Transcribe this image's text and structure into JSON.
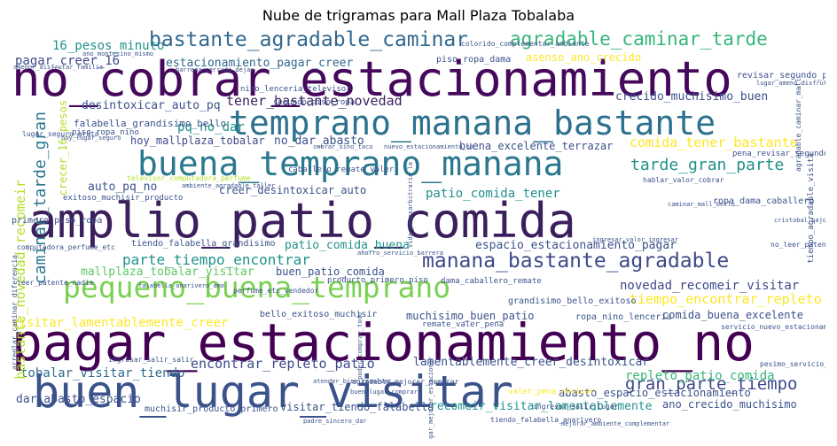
{
  "title": "Nube de trigramas para Mall Plaza Tobalaba",
  "words": {
    "w1": {
      "text": "amplio_patio_comida",
      "color": "#3b1f5c"
    },
    "w2": {
      "text": "pagar_estacionamiento_no",
      "color": "#440154"
    },
    "w3": {
      "text": "no_cobrar_estacionamiento",
      "color": "#46085c"
    },
    "w4": {
      "text": "buen_lugar_visitar",
      "color": "#3b528b"
    },
    "w5": {
      "text": "buena_temprano_manana",
      "color": "#2a788e"
    },
    "w6": {
      "text": "temprano_manana_bastante",
      "color": "#2c728e"
    },
    "w7": {
      "text": "pequeno_buena_temprano",
      "color": "#7ad151"
    },
    "w8": {
      "text": "bastante_agradable_caminar",
      "color": "#31688e"
    },
    "w9": {
      "text": "agradable_caminar_tarde",
      "color": "#35b779"
    },
    "w10": {
      "text": "manana_bastante_agradable",
      "color": "#3e4a89"
    },
    "w11": {
      "text": "caminar_tarde_gran",
      "color": "#2a788e"
    },
    "w12": {
      "text": "tener_bastante_novedad",
      "color": "#3b1f5c"
    },
    "w13": {
      "text": "parte_tiempo_encontrar",
      "color": "#21918c"
    },
    "w14": {
      "text": "tarde_gran_parte",
      "color": "#21918c"
    },
    "w15": {
      "text": "gran_parte_tiempo",
      "color": "#3e4a89"
    },
    "w16": {
      "text": "encontrar_repleto_patio",
      "color": "#3e4a89"
    },
    "w17": {
      "text": "tobalar_visitar_tiendo",
      "color": "#31688e"
    },
    "w18": {
      "text": "comida_tener_bastante",
      "color": "#fde725"
    },
    "w19": {
      "text": "patio_comida_tener",
      "color": "#21918c"
    },
    "w20": {
      "text": "tiempo_encontrar_repleto",
      "color": "#fde725"
    },
    "w21": {
      "text": "novedad_recomeir_visitar",
      "color": "#3e4a89"
    },
    "w22": {
      "text": "lamentablemente_creer_desintoxicar",
      "color": "#3b528b"
    },
    "w23": {
      "text": "repleto_patio_comida",
      "color": "#35b779"
    },
    "w24": {
      "text": "abasto_espacio_estacionamiento",
      "color": "#3b528b"
    },
    "w25": {
      "text": "visitar_lamentablemente_creer",
      "color": "#fde725"
    },
    "w26": {
      "text": "bastante_novedad_recomeir",
      "color": "#b5de2b"
    },
    "w27": {
      "text": "estacionamiento_pagar_creer",
      "color": "#31688e"
    },
    "w28": {
      "text": "pagar_creer_16",
      "color": "#3e4a89"
    },
    "w29": {
      "text": "16_pesos_minuto",
      "color": "#21918c"
    },
    "w30": {
      "text": "desintoxicar_auto_pq",
      "color": "#3b528b"
    },
    "w31": {
      "text": "pq_no_dar",
      "color": "#21918c"
    },
    "w32": {
      "text": "no_dar_abasto",
      "color": "#3b528b"
    },
    "w33": {
      "text": "buena_excelente_terrazar",
      "color": "#3b528b"
    },
    "w34": {
      "text": "crecido_muchisimo_buen",
      "color": "#3b528b"
    },
    "w35": {
      "text": "asenso_ano_crecido",
      "color": "#fde725"
    },
    "w36": {
      "text": "auto_pq_no",
      "color": "#3b528b"
    },
    "w37": {
      "text": "creer_desintoxicar_auto",
      "color": "#3b528b"
    },
    "w38": {
      "text": "hoy_mallplaza_tobalar",
      "color": "#3e4a89"
    },
    "w39": {
      "text": "falabella_grandisimo_bello",
      "color": "#3b528b"
    },
    "w40": {
      "text": "mallplaza_tobalar_visitar",
      "color": "#5ec962"
    },
    "w41": {
      "text": "buen_patio_comida",
      "color": "#3b528b"
    },
    "w42": {
      "text": "espacio_estacionamiento_pagar",
      "color": "#3b528b"
    },
    "w43": {
      "text": "patio_comida_buena",
      "color": "#21918c"
    },
    "w44": {
      "text": "muchisimo_buen_patio",
      "color": "#3b528b"
    },
    "w45": {
      "text": "comida_buena_excelente",
      "color": "#3b528b"
    },
    "w46": {
      "text": "dar_abasto_espacio",
      "color": "#3b528b"
    },
    "w47": {
      "text": "visitar_tiendo_falabella",
      "color": "#3b528b"
    },
    "w48": {
      "text": "recomeir_visitar_lamentablemente",
      "color": "#21918c"
    },
    "w49": {
      "text": "ano_crecido_muchisimo",
      "color": "#3b528b"
    },
    "w50": {
      "text": "crecer_16_pesos",
      "color": "#b5de2b"
    },
    "w51": {
      "text": "primero_piso_ropa",
      "color": "#3b528b"
    },
    "w52": {
      "text": "tiendo_falabella_grandisimo",
      "color": "#3b528b"
    },
    "w53": {
      "text": "exitoso_muchisir_producto",
      "color": "#3b528b"
    },
    "w54": {
      "text": "grandisimo_bello_exitoso",
      "color": "#3b528b"
    },
    "w55": {
      "text": "ropa_nino_lenceria",
      "color": "#3b528b"
    },
    "w56": {
      "text": "muchisir_producto_primero",
      "color": "#3b528b"
    },
    "w57": {
      "text": "bello_exitoso_muchisir",
      "color": "#3b528b"
    },
    "w58": {
      "text": "ropa_dama_caballero",
      "color": "#3b528b"
    },
    "w59": {
      "text": "nino_lenceria_televisor",
      "color": "#3b528b"
    },
    "w60": {
      "text": "piso_ropa_nino",
      "color": "#3b528b"
    },
    "w61": {
      "text": "remate_valer_pena",
      "color": "#3b528b"
    },
    "w62": {
      "text": "revisar_segundo_piso",
      "color": "#3b528b"
    },
    "w63": {
      "text": "dama_caballero_remate",
      "color": "#3b528b"
    },
    "w64": {
      "text": "producto_primero_piso",
      "color": "#3b528b"
    },
    "w65": {
      "text": "piso_ropa_dama",
      "color": "#3b528b"
    },
    "w66": {
      "text": "caballero_remate_valer",
      "color": "#3b528b"
    },
    "w67": {
      "text": "perfume_etc_vendedor",
      "color": "#3b528b"
    },
    "w68": {
      "text": "pena_revisar_segundo",
      "color": "#3b528b"
    },
    "w69": {
      "text": "segundo_piso_ropa",
      "color": "#3b528b"
    },
    "w70": {
      "text": "valer_pena_revisar",
      "color": "#fde725"
    },
    "w71": {
      "text": "lugar_seguro_grato",
      "color": "#3b528b"
    },
    "w72": {
      "text": "televisor_computadora_perfume",
      "color": "#b5de2b"
    },
    "w73": {
      "text": "computadora_perfume_etc",
      "color": "#3b528b"
    },
    "w74": {
      "text": "tiendo_falabella_anarivero",
      "color": "#3b528b"
    },
    "w75": {
      "text": "muchisimo_buen_patio",
      "color": "#3b528b"
    },
    "w76": {
      "text": "servicio_nuevo_estacionamiento",
      "color": "#3b528b"
    },
    "w77": {
      "text": "no_leer_patente",
      "color": "#3b528b"
    },
    "w78": {
      "text": "leer_patente_nadie",
      "color": "#3b528b"
    },
    "w79": {
      "text": "hablar_valor_cobrar",
      "color": "#3b528b"
    },
    "w80": {
      "text": "pesimo_servicio_nuevo",
      "color": "#3b528b"
    },
    "w81": {
      "text": "abasto_espacio_estacionamiento",
      "color": "#3b528b"
    },
    "w82": {
      "text": "ingresar_salir_salir",
      "color": "#3b528b"
    },
    "w83": {
      "text": "agradable_mejorar_demorar",
      "color": "#3b528b"
    },
    "w84": {
      "text": "ingresar_salir_lugar",
      "color": "#3b528b"
    },
    "w85": {
      "text": "agradable_mejorar_bastante",
      "color": "#3b528b"
    },
    "w86": {
      "text": "arreglar_caminar_diferencia",
      "color": "#3b528b"
    },
    "w87": {
      "text": "colorido_complementar_ambiente",
      "color": "#3b528b"
    },
    "w88": {
      "text": "cobrar_sino_taco",
      "color": "#3b528b"
    },
    "w89": {
      "text": "nuevo_estacionamiento_no",
      "color": "#3b528b"
    },
    "w90": {
      "text": "barrera_cerrado_dejar",
      "color": "#3b528b"
    },
    "w91": {
      "text": "vida_pesosarbitrario_la",
      "color": "#3b528b"
    },
    "w92": {
      "text": "amplio_amplio_amplio",
      "color": "#3b528b"
    },
    "w93": {
      "text": "ano_montesino_mismo",
      "color": "#3b528b"
    },
    "w94": {
      "text": "amenor_disfrutar_familia",
      "color": "#3b528b"
    },
    "w95": {
      "text": "negocio_estacionamiento_dar",
      "color": "#3b528b"
    },
    "w96": {
      "text": "ingresar_valor_ingresar",
      "color": "#3b528b"
    },
    "w97": {
      "text": "lugar_ameno_disfrutar",
      "color": "#3b528b"
    },
    "w98": {
      "text": "atender_bien_resolver",
      "color": "#3b528b"
    },
    "w99": {
      "text": "buen_lugar_comprar",
      "color": "#3b528b"
    },
    "w100": {
      "text": "faltar_pesada_regalo",
      "color": "#3b528b"
    },
    "w101": {
      "text": "ambiente_agradable_taller",
      "color": "#3b528b"
    },
    "w102": {
      "text": "hoy_lugar_seguro",
      "color": "#3b528b"
    },
    "w103": {
      "text": "hacer_comprar_mall",
      "color": "#3b528b"
    },
    "w104": {
      "text": "agradable_caminar_mall",
      "color": "#3b528b"
    },
    "w105": {
      "text": "atender_caminar_mall",
      "color": "#3b528b"
    },
    "w106": {
      "text": "tiendo_falabella_anarivero",
      "color": "#3b528b"
    },
    "w107": {
      "text": "falabella_anarivero_amo",
      "color": "#3b528b"
    },
    "w108": {
      "text": "hombre_recibir_ayudar",
      "color": "#3b528b"
    },
    "w109": {
      "text": "salir_lugar_no",
      "color": "#3b528b"
    },
    "w110": {
      "text": "ingresar_salir_lugar",
      "color": "#3b528b"
    },
    "w111": {
      "text": "caminar_mall_bello",
      "color": "#3b528b"
    },
    "w112": {
      "text": "comida_mucho_lugar",
      "color": "#3b528b"
    },
    "w113": {
      "text": "poder_comprar_todo",
      "color": "#3b528b"
    },
    "w114": {
      "text": "apoyo_pandemia_bajo",
      "color": "#3b528b"
    },
    "w115": {
      "text": "padre_sincero_dar",
      "color": "#3b528b"
    },
    "w116": {
      "text": "agradable_mejorar_demorar",
      "color": "#3b528b"
    },
    "w117": {
      "text": "mejorar_ambiente_complementar",
      "color": "#3b528b"
    },
    "w118": {
      "text": "lugar_mejorar_estacionar",
      "color": "#3b528b"
    },
    "w119": {
      "text": "cristobal_bajo_cuidar",
      "color": "#3b528b"
    },
    "w120": {
      "text": "hoy_lugar_seguro",
      "color": "#3b528b"
    },
    "w121": {
      "text": "ropa_ofertas_modernas",
      "color": "#3b528b"
    },
    "w122": {
      "text": "ahorro_servicio_barrera",
      "color": "#3b528b"
    },
    "w123": {
      "text": "servicio_nuevo_estacionamiento",
      "color": "#3b528b"
    },
    "w124": {
      "text": "ano_montesino_mismo",
      "color": "#3b528b"
    },
    "w125": {
      "text": "tiempo_agradable_visita",
      "color": "#3b528b"
    }
  }
}
